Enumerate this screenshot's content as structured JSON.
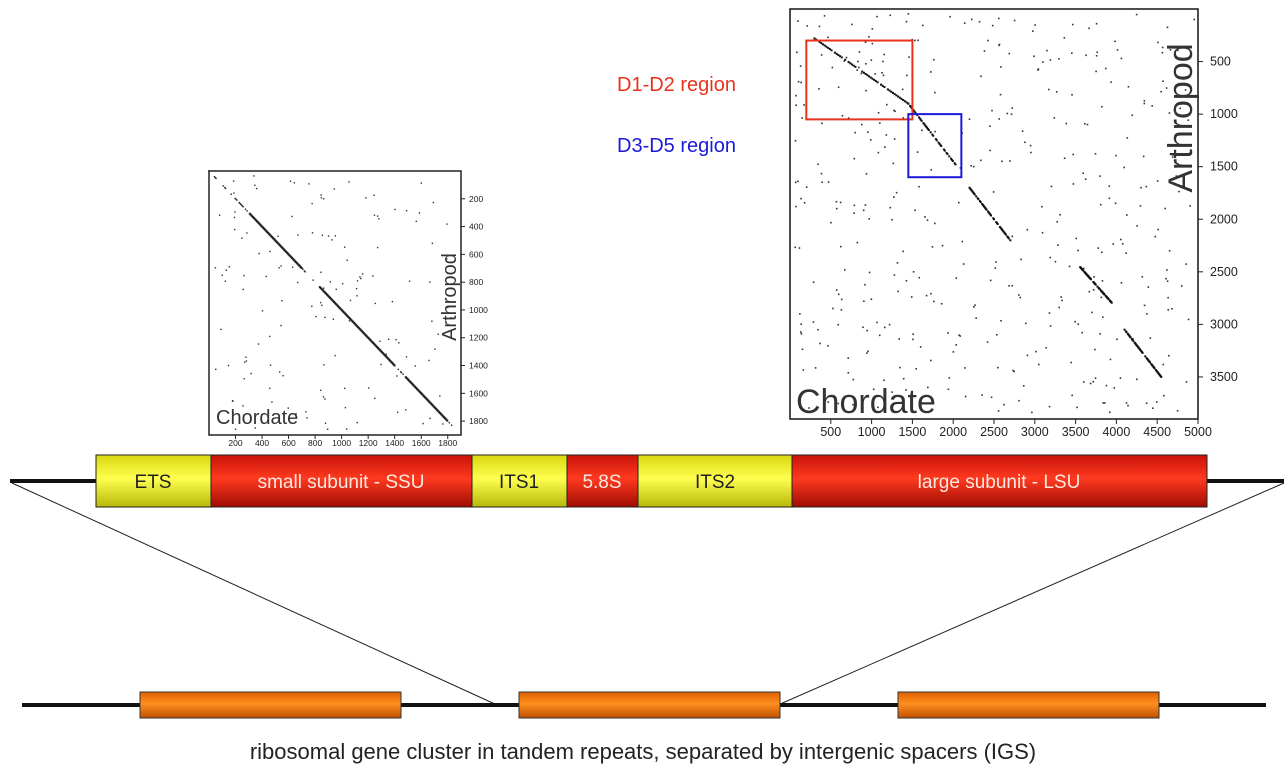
{
  "colors": {
    "red_segment": "#e02010",
    "yellow_segment": "#f0f020",
    "orange_repeat": "#ff7700",
    "d1d2_box": "#e8321e",
    "d3d5_box": "#1a1ad8",
    "ink": "#1a1a1a"
  },
  "gene_segments": [
    {
      "label": "ETS",
      "color": "yellow"
    },
    {
      "label": "small subunit - SSU",
      "color": "red"
    },
    {
      "label": "ITS1",
      "color": "yellow"
    },
    {
      "label": "5.8S",
      "color": "red"
    },
    {
      "label": "ITS2",
      "color": "yellow"
    },
    {
      "label": "large subunit - LSU",
      "color": "red"
    }
  ],
  "small_plot": {
    "x_label": "Chordate",
    "y_label": "Arthropod",
    "x_ticks": [
      "200",
      "400",
      "600",
      "800",
      "1000",
      "1200",
      "1400",
      "1600",
      "1800"
    ],
    "y_ticks": [
      "200",
      "400",
      "600",
      "800",
      "1000",
      "1200",
      "1400",
      "1600",
      "1800"
    ],
    "x_range": [
      0,
      1900
    ],
    "y_range": [
      0,
      1900
    ]
  },
  "large_plot": {
    "x_label": "Chordate",
    "y_label": "Arthropod",
    "x_ticks": [
      "500",
      "1000",
      "1500",
      "2000",
      "2500",
      "3000",
      "3500",
      "4000",
      "4500",
      "5000"
    ],
    "y_ticks": [
      "500",
      "1000",
      "1500",
      "2000",
      "2500",
      "3000",
      "3500"
    ],
    "x_range": [
      0,
      5000
    ],
    "y_range": [
      0,
      3900
    ],
    "regions": [
      {
        "label": "D1-D2 region",
        "color": "red",
        "x_range": [
          200,
          1500
        ],
        "y_range": [
          300,
          1050
        ]
      },
      {
        "label": "D3-D5 region",
        "color": "blue",
        "x_range": [
          1450,
          2100
        ],
        "y_range": [
          1000,
          1600
        ]
      }
    ]
  },
  "caption": "ribosomal gene cluster in tandem repeats, separated by intergenic spacers (IGS)",
  "repeat_units": 3
}
